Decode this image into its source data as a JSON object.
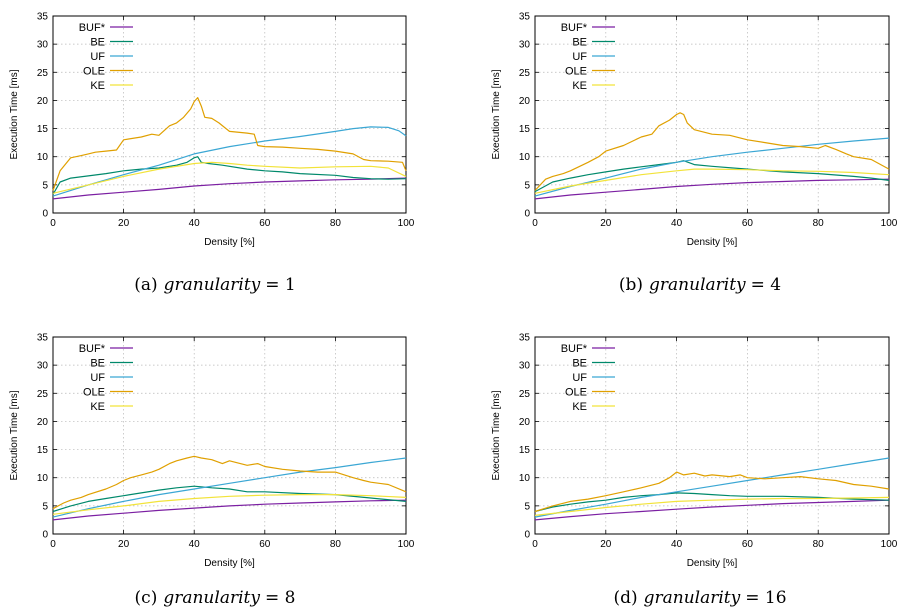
{
  "figure": {
    "series_colors": {
      "BUF*": "#7b1fa2",
      "BE": "#00896b",
      "UF": "#3ba7d4",
      "OLE": "#e0a000",
      "KE": "#f2e33a"
    }
  },
  "chart_data": [
    {
      "type": "line",
      "caption_prefix": "(a)",
      "caption_var": "granularity",
      "caption_value": "= 1",
      "xlabel": "Density [%]",
      "ylabel": "Execution Time [ms]",
      "xlim": [
        0,
        100
      ],
      "ylim": [
        0,
        35
      ],
      "xticks": [
        0,
        20,
        40,
        60,
        80,
        100
      ],
      "yticks": [
        0,
        5,
        10,
        15,
        20,
        25,
        30,
        35
      ],
      "grid": true,
      "legend_position": "top-left",
      "series": [
        {
          "name": "BUF*",
          "color": "#7b1fa2",
          "x": [
            0,
            10,
            20,
            30,
            40,
            50,
            60,
            70,
            80,
            90,
            100
          ],
          "y": [
            2.5,
            3.2,
            3.7,
            4.2,
            4.8,
            5.2,
            5.5,
            5.7,
            5.9,
            6.0,
            6.2
          ]
        },
        {
          "name": "BE",
          "color": "#00896b",
          "x": [
            0,
            2,
            5,
            10,
            15,
            20,
            25,
            30,
            35,
            38,
            40,
            41,
            42,
            44,
            48,
            55,
            60,
            65,
            70,
            80,
            85,
            90,
            95,
            100
          ],
          "y": [
            3.3,
            5.5,
            6.2,
            6.6,
            7.0,
            7.5,
            7.8,
            8.0,
            8.5,
            9.0,
            9.8,
            10.0,
            9.0,
            8.8,
            8.5,
            7.8,
            7.5,
            7.3,
            7.0,
            6.7,
            6.3,
            6.1,
            6.0,
            6.1
          ]
        },
        {
          "name": "UF",
          "color": "#3ba7d4",
          "x": [
            0,
            10,
            20,
            30,
            40,
            50,
            60,
            70,
            80,
            85,
            90,
            95,
            98,
            100
          ],
          "y": [
            3.0,
            5.0,
            6.8,
            8.5,
            10.5,
            11.8,
            12.8,
            13.6,
            14.5,
            15.0,
            15.3,
            15.2,
            14.6,
            13.7
          ]
        },
        {
          "name": "OLE",
          "color": "#e0a000",
          "x": [
            0,
            2,
            5,
            8,
            10,
            12,
            15,
            18,
            20,
            25,
            28,
            30,
            33,
            35,
            37,
            39,
            40,
            41,
            42,
            43,
            45,
            47,
            50,
            55,
            57,
            58,
            60,
            65,
            70,
            75,
            80,
            85,
            88,
            90,
            95,
            99,
            100
          ],
          "y": [
            4.0,
            7.5,
            9.8,
            10.2,
            10.5,
            10.8,
            11.0,
            11.2,
            13.0,
            13.5,
            14.0,
            13.8,
            15.5,
            16.0,
            17.0,
            18.5,
            19.8,
            20.5,
            19.0,
            17.0,
            16.8,
            16.0,
            14.5,
            14.2,
            14.0,
            12.0,
            11.8,
            11.7,
            11.5,
            11.3,
            11.0,
            10.5,
            9.5,
            9.3,
            9.2,
            9.0,
            7.5
          ]
        },
        {
          "name": "KE",
          "color": "#f2e33a",
          "x": [
            0,
            10,
            20,
            30,
            40,
            45,
            50,
            55,
            60,
            70,
            80,
            90,
            95,
            100
          ],
          "y": [
            3.5,
            5.0,
            6.5,
            7.8,
            8.8,
            9.0,
            8.8,
            8.5,
            8.3,
            8.0,
            8.2,
            8.3,
            8.0,
            6.5
          ]
        }
      ]
    },
    {
      "type": "line",
      "caption_prefix": "(b)",
      "caption_var": "granularity",
      "caption_value": "= 4",
      "xlabel": "Density [%]",
      "ylabel": "Execution Time [ms]",
      "xlim": [
        0,
        100
      ],
      "ylim": [
        0,
        35
      ],
      "xticks": [
        0,
        20,
        40,
        60,
        80,
        100
      ],
      "yticks": [
        0,
        5,
        10,
        15,
        20,
        25,
        30,
        35
      ],
      "grid": true,
      "legend_position": "top-left",
      "series": [
        {
          "name": "BUF*",
          "color": "#7b1fa2",
          "x": [
            0,
            10,
            20,
            30,
            40,
            50,
            60,
            70,
            80,
            90,
            100
          ],
          "y": [
            2.5,
            3.2,
            3.7,
            4.2,
            4.7,
            5.1,
            5.4,
            5.6,
            5.8,
            5.9,
            6.0
          ]
        },
        {
          "name": "BE",
          "color": "#00896b",
          "x": [
            0,
            5,
            10,
            15,
            20,
            25,
            30,
            35,
            40,
            42,
            45,
            50,
            60,
            70,
            80,
            90,
            95,
            100
          ],
          "y": [
            3.8,
            5.5,
            6.2,
            6.8,
            7.3,
            7.8,
            8.2,
            8.6,
            9.0,
            9.3,
            8.6,
            8.3,
            7.8,
            7.3,
            7.0,
            6.5,
            6.2,
            5.8
          ]
        },
        {
          "name": "UF",
          "color": "#3ba7d4",
          "x": [
            0,
            10,
            20,
            30,
            40,
            50,
            60,
            70,
            80,
            90,
            100
          ],
          "y": [
            3.0,
            4.7,
            6.2,
            7.8,
            9.0,
            10.0,
            10.8,
            11.5,
            12.2,
            12.8,
            13.3
          ]
        },
        {
          "name": "OLE",
          "color": "#e0a000",
          "x": [
            0,
            3,
            5,
            8,
            10,
            15,
            18,
            20,
            25,
            30,
            33,
            35,
            38,
            40,
            41,
            42,
            43,
            45,
            50,
            55,
            60,
            65,
            70,
            75,
            80,
            82,
            85,
            88,
            90,
            95,
            100
          ],
          "y": [
            4.0,
            6.0,
            6.5,
            7.0,
            7.5,
            9.0,
            10.0,
            11.0,
            12.0,
            13.5,
            14.0,
            15.5,
            16.5,
            17.5,
            17.8,
            17.5,
            16.0,
            14.8,
            14.0,
            13.8,
            13.0,
            12.5,
            12.0,
            11.8,
            11.5,
            12.0,
            11.3,
            10.5,
            10.0,
            9.5,
            7.8
          ]
        },
        {
          "name": "KE",
          "color": "#f2e33a",
          "x": [
            0,
            10,
            20,
            30,
            40,
            45,
            50,
            60,
            70,
            80,
            90,
            100
          ],
          "y": [
            3.5,
            4.8,
            5.8,
            6.8,
            7.5,
            7.8,
            7.8,
            7.7,
            7.5,
            7.4,
            7.2,
            6.8
          ]
        }
      ]
    },
    {
      "type": "line",
      "caption_prefix": "(c)",
      "caption_var": "granularity",
      "caption_value": "= 8",
      "xlabel": "Density [%]",
      "ylabel": "Execution Time [ms]",
      "xlim": [
        0,
        100
      ],
      "ylim": [
        0,
        35
      ],
      "xticks": [
        0,
        20,
        40,
        60,
        80,
        100
      ],
      "yticks": [
        0,
        5,
        10,
        15,
        20,
        25,
        30,
        35
      ],
      "grid": true,
      "legend_position": "top-left",
      "series": [
        {
          "name": "BUF*",
          "color": "#7b1fa2",
          "x": [
            0,
            10,
            20,
            30,
            40,
            50,
            60,
            70,
            80,
            90,
            100
          ],
          "y": [
            2.5,
            3.2,
            3.7,
            4.2,
            4.6,
            5.0,
            5.3,
            5.5,
            5.7,
            5.9,
            6.0
          ]
        },
        {
          "name": "BE",
          "color": "#00896b",
          "x": [
            0,
            5,
            10,
            15,
            20,
            25,
            30,
            35,
            40,
            45,
            50,
            55,
            60,
            70,
            80,
            90,
            100
          ],
          "y": [
            4.0,
            5.0,
            5.8,
            6.3,
            6.8,
            7.3,
            7.8,
            8.2,
            8.5,
            8.2,
            8.0,
            7.5,
            7.5,
            7.2,
            7.0,
            6.4,
            5.8
          ]
        },
        {
          "name": "UF",
          "color": "#3ba7d4",
          "x": [
            0,
            10,
            20,
            30,
            40,
            50,
            60,
            70,
            80,
            90,
            100
          ],
          "y": [
            3.0,
            4.5,
            5.8,
            7.0,
            8.0,
            9.0,
            10.0,
            11.0,
            11.8,
            12.7,
            13.5
          ]
        },
        {
          "name": "OLE",
          "color": "#e0a000",
          "x": [
            0,
            3,
            5,
            8,
            10,
            15,
            18,
            20,
            22,
            25,
            28,
            30,
            33,
            35,
            38,
            40,
            42,
            45,
            48,
            50,
            55,
            58,
            60,
            65,
            70,
            75,
            80,
            85,
            88,
            90,
            95,
            100
          ],
          "y": [
            4.5,
            5.5,
            6.0,
            6.5,
            7.0,
            8.0,
            8.8,
            9.5,
            10.0,
            10.5,
            11.0,
            11.5,
            12.5,
            13.0,
            13.5,
            13.8,
            13.5,
            13.2,
            12.5,
            13.0,
            12.2,
            12.5,
            12.0,
            11.5,
            11.2,
            11.0,
            11.0,
            10.0,
            9.5,
            9.2,
            8.8,
            7.5
          ]
        },
        {
          "name": "KE",
          "color": "#f2e33a",
          "x": [
            0,
            10,
            20,
            30,
            40,
            50,
            60,
            70,
            80,
            90,
            100
          ],
          "y": [
            3.5,
            4.3,
            5.0,
            5.8,
            6.3,
            6.7,
            6.9,
            7.0,
            7.0,
            6.8,
            6.5
          ]
        }
      ]
    },
    {
      "type": "line",
      "caption_prefix": "(d)",
      "caption_var": "granularity",
      "caption_value": "= 16",
      "xlabel": "Density [%]",
      "ylabel": "Execution Time [ms]",
      "xlim": [
        0,
        100
      ],
      "ylim": [
        0,
        35
      ],
      "xticks": [
        0,
        20,
        40,
        60,
        80,
        100
      ],
      "yticks": [
        0,
        5,
        10,
        15,
        20,
        25,
        30,
        35
      ],
      "grid": true,
      "legend_position": "top-left",
      "series": [
        {
          "name": "BUF*",
          "color": "#7b1fa2",
          "x": [
            0,
            10,
            20,
            30,
            40,
            50,
            60,
            70,
            80,
            90,
            100
          ],
          "y": [
            2.5,
            3.1,
            3.6,
            4.0,
            4.4,
            4.8,
            5.1,
            5.4,
            5.6,
            5.8,
            6.0
          ]
        },
        {
          "name": "BE",
          "color": "#00896b",
          "x": [
            0,
            5,
            10,
            15,
            20,
            25,
            30,
            35,
            40,
            45,
            50,
            55,
            60,
            70,
            80,
            90,
            100
          ],
          "y": [
            4.0,
            4.8,
            5.3,
            5.7,
            6.0,
            6.5,
            6.8,
            7.0,
            7.3,
            7.2,
            7.0,
            6.8,
            6.7,
            6.7,
            6.5,
            6.2,
            6.0
          ]
        },
        {
          "name": "UF",
          "color": "#3ba7d4",
          "x": [
            0,
            10,
            20,
            30,
            40,
            50,
            60,
            70,
            80,
            90,
            100
          ],
          "y": [
            3.0,
            4.2,
            5.3,
            6.5,
            7.5,
            8.5,
            9.5,
            10.5,
            11.5,
            12.5,
            13.5
          ]
        },
        {
          "name": "OLE",
          "color": "#e0a000",
          "x": [
            0,
            5,
            10,
            15,
            20,
            25,
            30,
            35,
            38,
            40,
            42,
            45,
            48,
            50,
            55,
            58,
            60,
            65,
            70,
            75,
            80,
            85,
            90,
            95,
            100
          ],
          "y": [
            4.0,
            5.0,
            5.8,
            6.2,
            6.8,
            7.5,
            8.2,
            9.0,
            10.0,
            11.0,
            10.5,
            10.8,
            10.3,
            10.5,
            10.2,
            10.5,
            10.0,
            9.8,
            10.0,
            10.2,
            9.8,
            9.5,
            8.8,
            8.5,
            8.0
          ]
        },
        {
          "name": "KE",
          "color": "#f2e33a",
          "x": [
            0,
            10,
            20,
            30,
            40,
            50,
            60,
            70,
            80,
            90,
            100
          ],
          "y": [
            3.3,
            4.0,
            4.7,
            5.3,
            5.8,
            6.0,
            6.2,
            6.3,
            6.3,
            6.4,
            6.5
          ]
        }
      ]
    }
  ]
}
